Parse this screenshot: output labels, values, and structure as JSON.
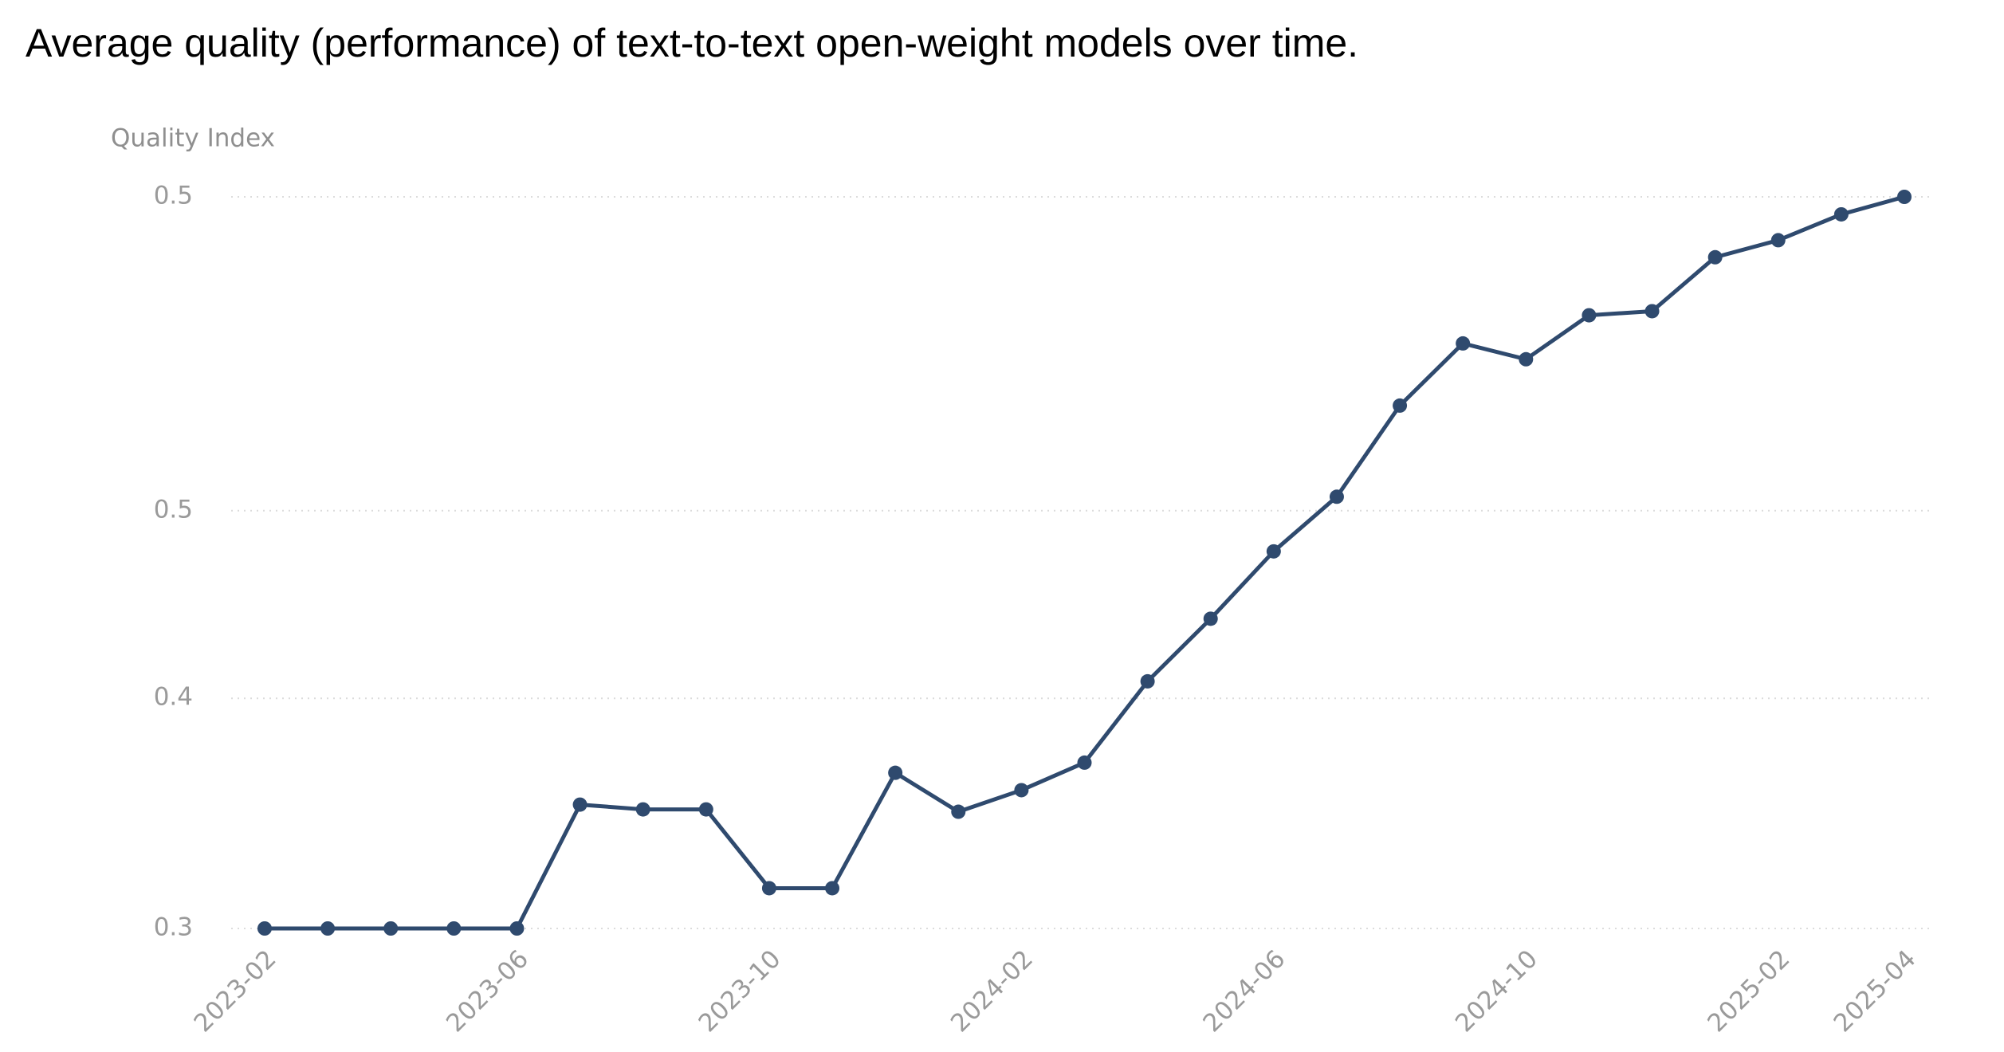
{
  "chart_data": {
    "type": "line",
    "title": "Average quality (performance) of text-to-text open-weight models over time.",
    "y_axis_label": "Quality Index",
    "categories": [
      "2023-02",
      null,
      null,
      null,
      "2023-06",
      null,
      null,
      null,
      "2023-10",
      null,
      null,
      null,
      "2024-02",
      null,
      null,
      null,
      "2024-06",
      null,
      null,
      null,
      "2024-10",
      null,
      null,
      null,
      "2025-02",
      null,
      "2025-04"
    ],
    "series": [
      {
        "name": "Quality Index",
        "color": "#2f4a6e",
        "values": [
          0.3,
          0.3,
          0.3,
          0.3,
          0.3,
          0.359,
          0.357,
          0.357,
          0.321,
          0.321,
          0.372,
          0.356,
          0.365,
          0.376,
          0.406,
          0.427,
          0.448,
          0.464,
          0.489,
          0.505,
          0.501,
          0.512,
          0.513,
          0.526,
          0.53,
          0.536,
          0.54
        ]
      }
    ],
    "ylim": [
      0.3,
      0.54
    ],
    "yscale": "pow",
    "yexponent": 2.5,
    "yticks": [
      {
        "value": 0.3,
        "label": "0.3"
      },
      {
        "value": 0.4,
        "label": "0.4"
      },
      {
        "value": 0.46,
        "label": "0.5"
      },
      {
        "value": 0.54,
        "label": "0.5"
      }
    ],
    "grid": true
  }
}
